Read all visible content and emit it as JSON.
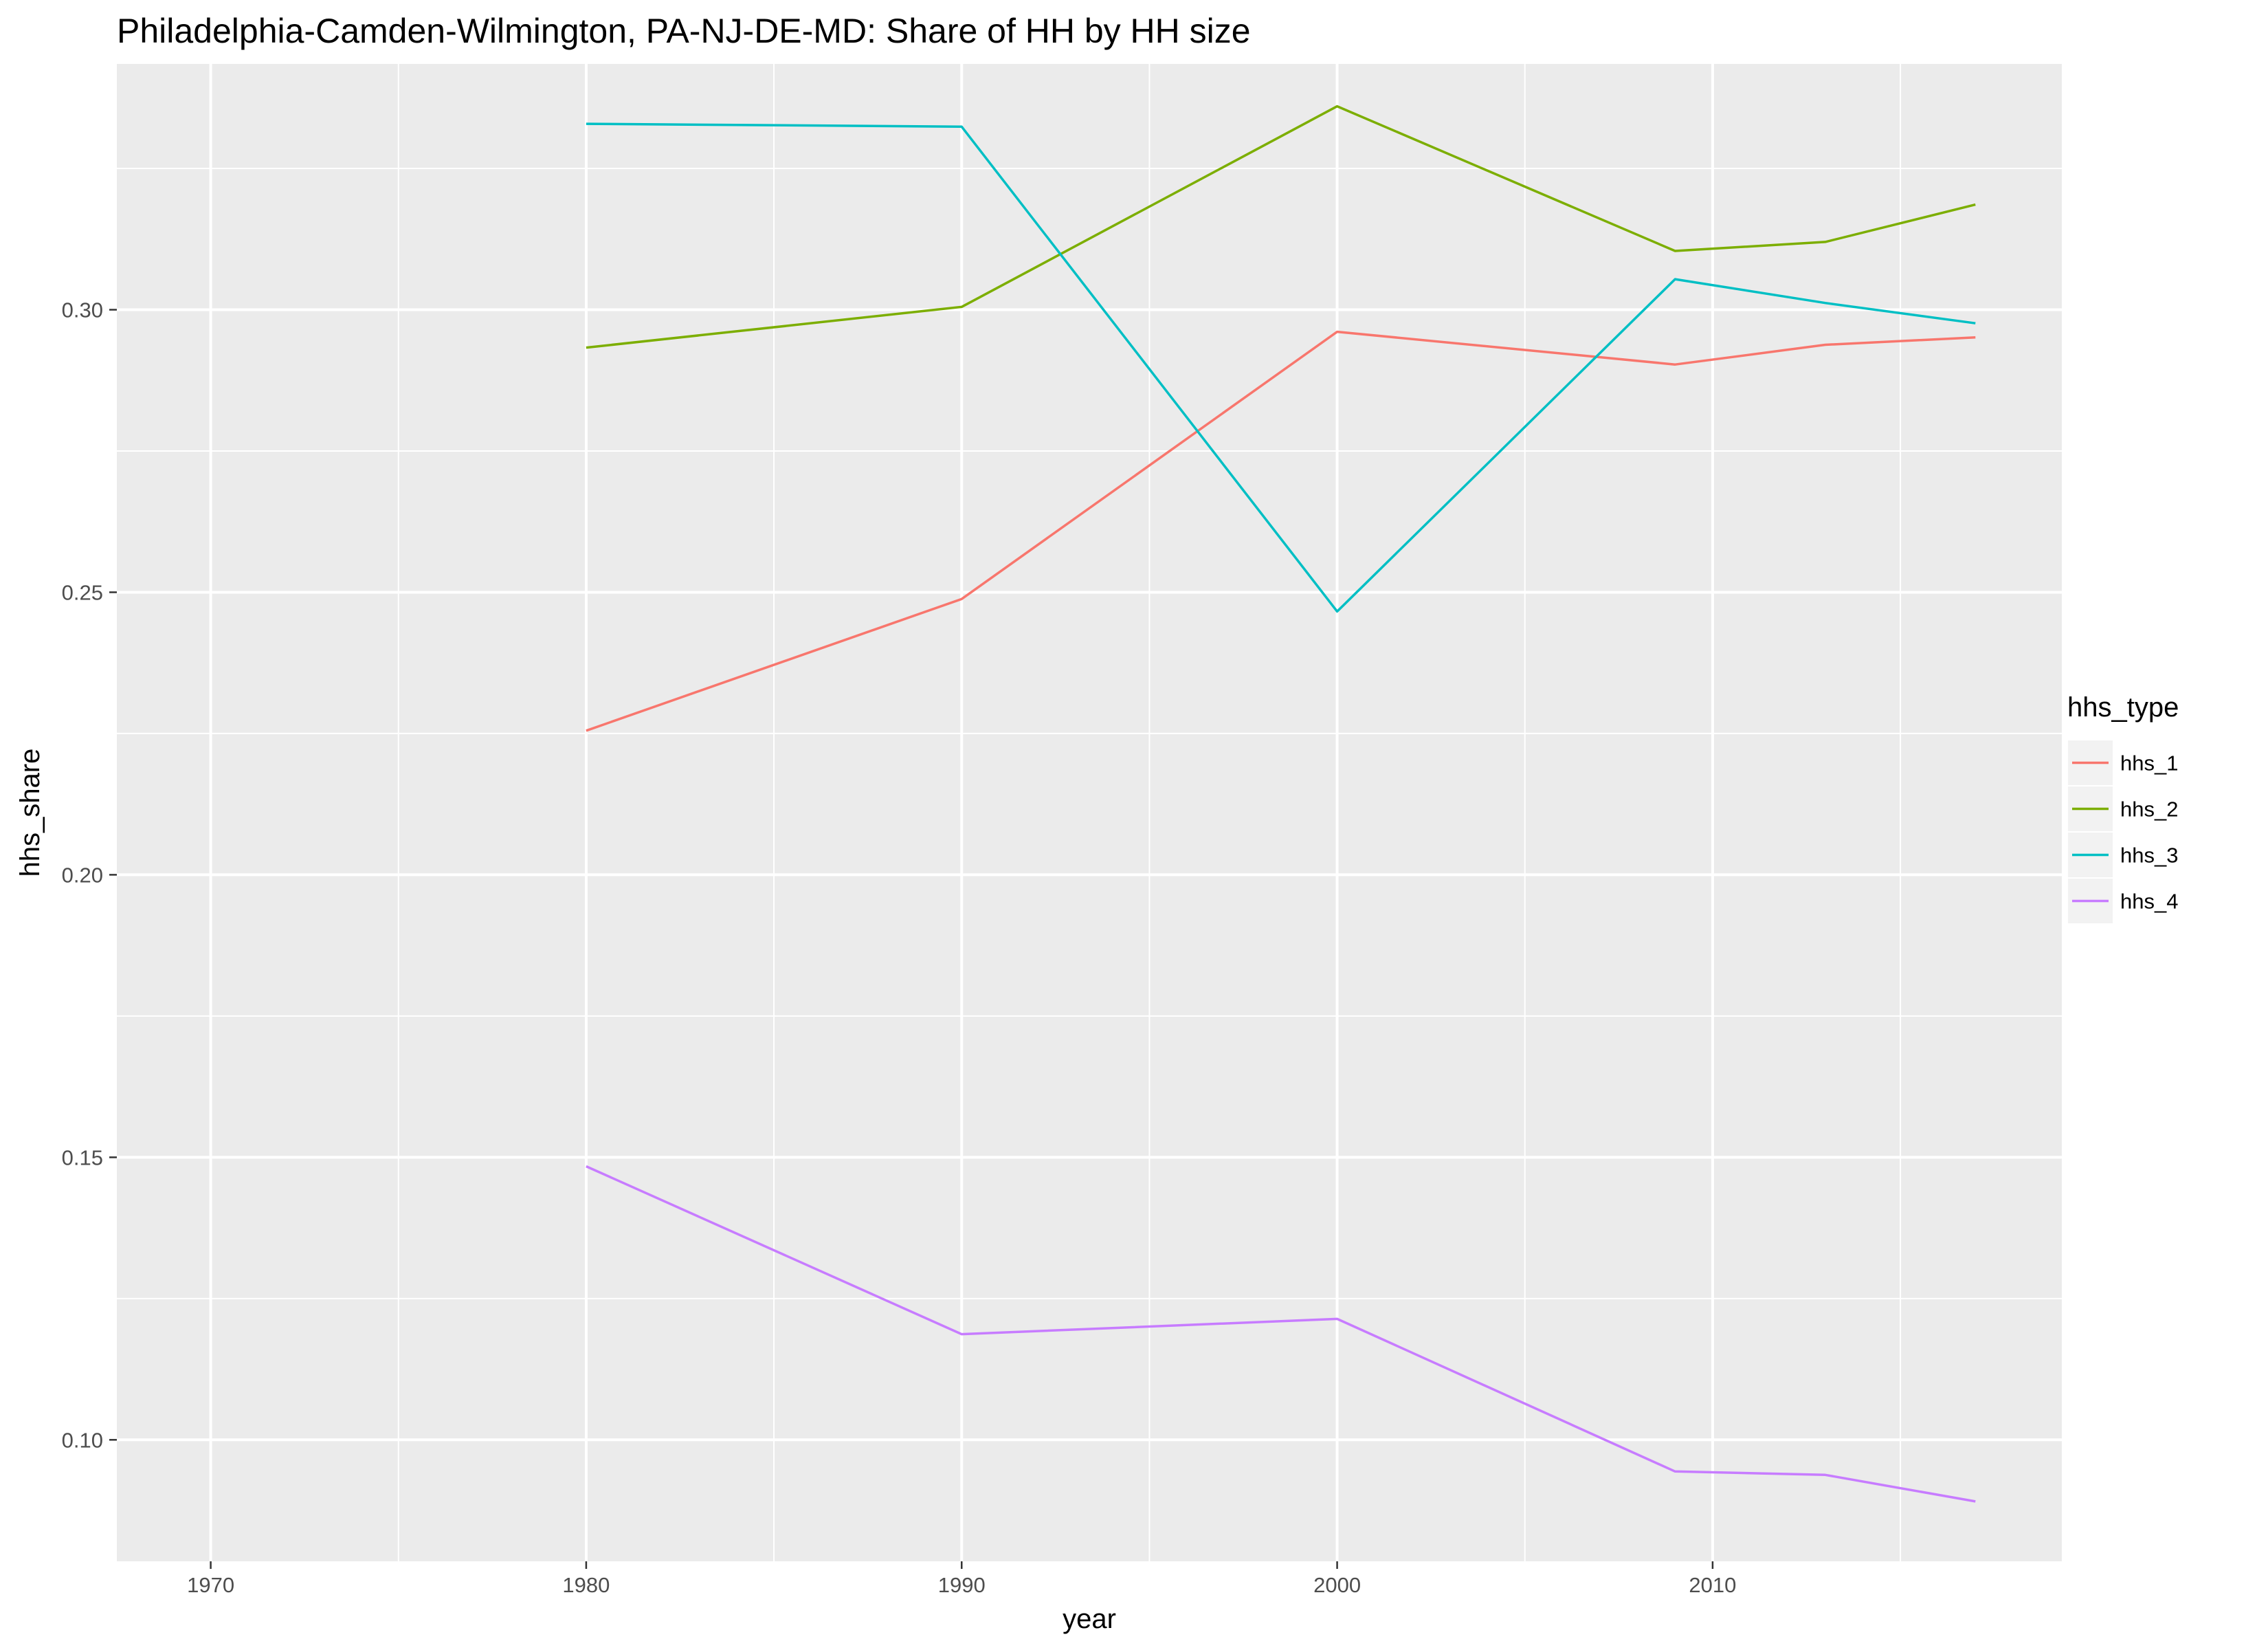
{
  "chart_data": {
    "type": "line",
    "title": "Philadelphia-Camden-Wilmington, PA-NJ-DE-MD: Share of HH by HH size",
    "xlabel": "year",
    "ylabel": "hhs_share",
    "xlim": [
      1967.5,
      2019.3
    ],
    "ylim": [
      0.0785,
      0.3435
    ],
    "x_ticks": [
      1970,
      1980,
      1990,
      2000,
      2010
    ],
    "x_tick_labels": [
      "1970",
      "1980",
      "1990",
      "2000",
      "2010"
    ],
    "y_ticks": [
      0.1,
      0.15,
      0.2,
      0.25,
      0.3
    ],
    "y_tick_labels": [
      "0.10",
      "0.15",
      "0.20",
      "0.25",
      "0.30"
    ],
    "x_minor": [
      1975,
      1985,
      1995,
      2005,
      2015
    ],
    "y_minor": [
      0.125,
      0.175,
      0.225,
      0.275,
      0.325
    ],
    "grid": true,
    "legend_title": "hhs_type",
    "legend_position": "right",
    "series": [
      {
        "name": "hhs_1",
        "color": "#F8766D",
        "x": [
          1980,
          1990,
          2000,
          2009,
          2013,
          2017
        ],
        "y": [
          0.2255,
          0.2488,
          0.2961,
          0.2903,
          0.2938,
          0.2951
        ]
      },
      {
        "name": "hhs_2",
        "color": "#7CAE00",
        "x": [
          1980,
          1990,
          2000,
          2009,
          2013,
          2017
        ],
        "y": [
          0.2933,
          0.3005,
          0.336,
          0.3104,
          0.312,
          0.3186
        ]
      },
      {
        "name": "hhs_3",
        "color": "#00BFC4",
        "x": [
          1980,
          1990,
          2000,
          2009,
          2013,
          2017
        ],
        "y": [
          0.3329,
          0.3324,
          0.2466,
          0.3054,
          0.3012,
          0.2976
        ]
      },
      {
        "name": "hhs_4",
        "color": "#C77CFF",
        "x": [
          1980,
          1990,
          2000,
          2009,
          2013,
          2017
        ],
        "y": [
          0.1484,
          0.1187,
          0.1214,
          0.0944,
          0.0938,
          0.0891
        ]
      }
    ]
  }
}
